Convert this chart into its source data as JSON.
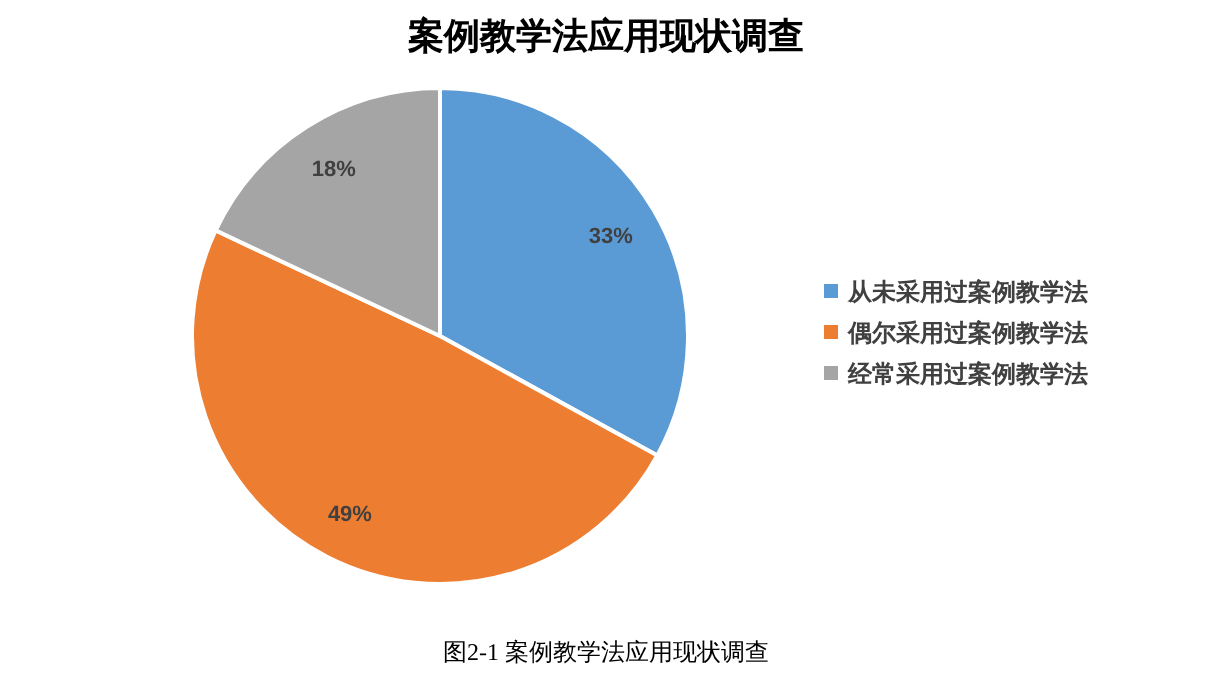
{
  "chart_data": {
    "type": "pie",
    "title": "案例教学法应用现状调查",
    "categories": [
      "从未采用过案例教学法",
      "偶尔采用过案例教学法",
      "经常采用过案例教学法"
    ],
    "values": [
      33,
      49,
      18
    ],
    "colors": [
      "#5b9bd5",
      "#ed7d31",
      "#a5a5a5"
    ],
    "value_labels": [
      "33%",
      "49%",
      "18%"
    ],
    "legend": "right",
    "annotations": [
      "图2-1  案例教学法应用现状调查"
    ]
  }
}
